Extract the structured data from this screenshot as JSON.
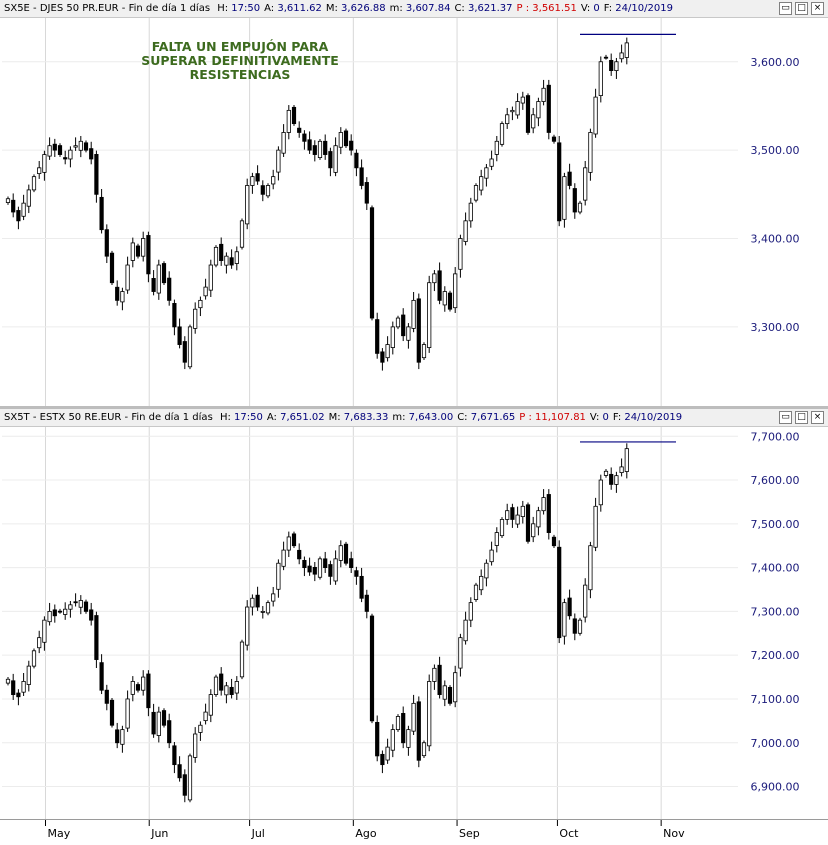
{
  "annotation": [
    "FALTA UN EMPUJÓN PARA",
    "SUPERAR DEFINITIVAMENTE",
    "RESISTENCIAS"
  ],
  "window_buttons": [
    "▭",
    "□",
    "×"
  ],
  "colors": {
    "axis_label": "#1a1a7a",
    "grid": "#d8d8d8",
    "candle": "#000000",
    "resistance": "#000080",
    "annotation": "#3d6b1f"
  },
  "x_axis": {
    "labels": [
      "May",
      "Jun",
      "Jul",
      "Ago",
      "Sep",
      "Oct",
      "Nov"
    ]
  },
  "panels": [
    {
      "id": "sx5e",
      "title": {
        "name": "SX5E - DJES 50 PR.EUR - Fin de día 1 días",
        "fields": [
          {
            "label": "H:",
            "value": "17:50"
          },
          {
            "label": "A:",
            "value": "3,611.62"
          },
          {
            "label": "M:",
            "value": "3,626.88"
          },
          {
            "label": "m:",
            "value": "3,607.84"
          },
          {
            "label": "C:",
            "value": "3,621.37"
          },
          {
            "label": "P :",
            "value": "3,561.51",
            "red": true
          },
          {
            "label": "V:",
            "value": "0"
          },
          {
            "label": "F:",
            "value": "24/10/2019"
          }
        ]
      },
      "y_ticks": [
        {
          "v": 3300,
          "label": "3,300.00"
        },
        {
          "v": 3400,
          "label": "3,400.00"
        },
        {
          "v": 3500,
          "label": "3,500.00"
        },
        {
          "v": 3600,
          "label": "3,600.00"
        }
      ],
      "ylim": [
        3215,
        3645
      ],
      "resistance": 3631
    },
    {
      "id": "sx5t",
      "title": {
        "name": "SX5T - ESTX 50 RE.EUR - Fin de día 1 días",
        "fields": [
          {
            "label": "H:",
            "value": "17:50"
          },
          {
            "label": "A:",
            "value": "7,651.02"
          },
          {
            "label": "M:",
            "value": "7,683.33"
          },
          {
            "label": "m:",
            "value": "7,643.00"
          },
          {
            "label": "C:",
            "value": "7,671.65"
          },
          {
            "label": "P :",
            "value": "11,107.81",
            "red": true
          },
          {
            "label": "V:",
            "value": "0"
          },
          {
            "label": "F:",
            "value": "24/10/2019"
          }
        ]
      },
      "y_ticks": [
        {
          "v": 6900,
          "label": "6,900.00"
        },
        {
          "v": 7000,
          "label": "7,000.00"
        },
        {
          "v": 7100,
          "label": "7,100.00"
        },
        {
          "v": 7200,
          "label": "7,200.00"
        },
        {
          "v": 7300,
          "label": "7,300.00"
        },
        {
          "v": 7400,
          "label": "7,400.00"
        },
        {
          "v": 7500,
          "label": "7,500.00"
        },
        {
          "v": 7600,
          "label": "7,600.00"
        },
        {
          "v": 7700,
          "label": "7,700.00"
        }
      ],
      "ylim": [
        6835,
        7712
      ],
      "resistance": 7687
    }
  ],
  "chart_data": [
    {
      "type": "candlestick",
      "title": "SX5E - DJES 50 PR.EUR",
      "x_range": [
        "2019-04-18",
        "2019-11-15"
      ],
      "x_ticks": [
        {
          "date": "2019-05-01",
          "label": "May"
        },
        {
          "date": "2019-06-01",
          "label": "Jun"
        },
        {
          "date": "2019-07-01",
          "label": "Jul"
        },
        {
          "date": "2019-08-01",
          "label": "Ago"
        },
        {
          "date": "2019-09-01",
          "label": "Sep"
        },
        {
          "date": "2019-10-01",
          "label": "Oct"
        },
        {
          "date": "2019-11-01",
          "label": "Nov"
        }
      ],
      "ylim": [
        3215,
        3645
      ],
      "resistance_level": 3631,
      "closes": [
        3445,
        3430,
        3420,
        3440,
        3455,
        3470,
        3480,
        3495,
        3505,
        3500,
        3495,
        3490,
        3500,
        3505,
        3510,
        3500,
        3490,
        3450,
        3410,
        3380,
        3350,
        3330,
        3340,
        3370,
        3395,
        3380,
        3400,
        3360,
        3340,
        3370,
        3350,
        3330,
        3300,
        3280,
        3260,
        3300,
        3320,
        3330,
        3345,
        3370,
        3390,
        3375,
        3380,
        3370,
        3385,
        3420,
        3460,
        3470,
        3465,
        3450,
        3460,
        3470,
        3500,
        3520,
        3545,
        3530,
        3520,
        3510,
        3500,
        3495,
        3510,
        3495,
        3480,
        3505,
        3520,
        3505,
        3500,
        3480,
        3460,
        3440,
        3310,
        3270,
        3260,
        3280,
        3300,
        3310,
        3290,
        3300,
        3330,
        3260,
        3280,
        3350,
        3360,
        3330,
        3340,
        3320,
        3360,
        3400,
        3420,
        3440,
        3460,
        3470,
        3480,
        3490,
        3510,
        3530,
        3540,
        3545,
        3555,
        3560,
        3520,
        3540,
        3555,
        3570,
        3520,
        3510,
        3420,
        3470,
        3460,
        3430,
        3440,
        3480,
        3520,
        3560,
        3600,
        3605,
        3590,
        3600,
        3610,
        3621.37
      ]
    },
    {
      "type": "candlestick",
      "title": "SX5T - ESTX 50 RE.EUR",
      "x_range": [
        "2019-04-18",
        "2019-11-15"
      ],
      "x_ticks": [
        {
          "date": "2019-05-01",
          "label": "May"
        },
        {
          "date": "2019-06-01",
          "label": "Jun"
        },
        {
          "date": "2019-07-01",
          "label": "Jul"
        },
        {
          "date": "2019-08-01",
          "label": "Ago"
        },
        {
          "date": "2019-09-01",
          "label": "Sep"
        },
        {
          "date": "2019-10-01",
          "label": "Oct"
        },
        {
          "date": "2019-11-01",
          "label": "Nov"
        }
      ],
      "ylim": [
        6835,
        7712
      ],
      "resistance_level": 7687,
      "closes": [
        7145,
        7110,
        7105,
        7140,
        7175,
        7210,
        7240,
        7280,
        7300,
        7290,
        7300,
        7305,
        7315,
        7320,
        7325,
        7300,
        7280,
        7190,
        7120,
        7090,
        7040,
        7000,
        7030,
        7100,
        7140,
        7120,
        7150,
        7080,
        7020,
        7070,
        7040,
        7000,
        6950,
        6920,
        6880,
        6970,
        7020,
        7040,
        7070,
        7110,
        7150,
        7120,
        7130,
        7110,
        7140,
        7230,
        7310,
        7330,
        7310,
        7300,
        7320,
        7340,
        7410,
        7440,
        7470,
        7450,
        7420,
        7400,
        7390,
        7385,
        7420,
        7400,
        7380,
        7420,
        7450,
        7410,
        7400,
        7380,
        7330,
        7300,
        7050,
        6970,
        6950,
        6990,
        7030,
        7060,
        7000,
        7030,
        7090,
        6960,
        7000,
        7140,
        7170,
        7110,
        7130,
        7090,
        7160,
        7240,
        7280,
        7320,
        7360,
        7380,
        7410,
        7440,
        7480,
        7510,
        7530,
        7510,
        7520,
        7540,
        7460,
        7500,
        7530,
        7560,
        7480,
        7450,
        7240,
        7320,
        7290,
        7250,
        7280,
        7360,
        7450,
        7540,
        7600,
        7620,
        7590,
        7610,
        7630,
        7671.65
      ]
    }
  ]
}
